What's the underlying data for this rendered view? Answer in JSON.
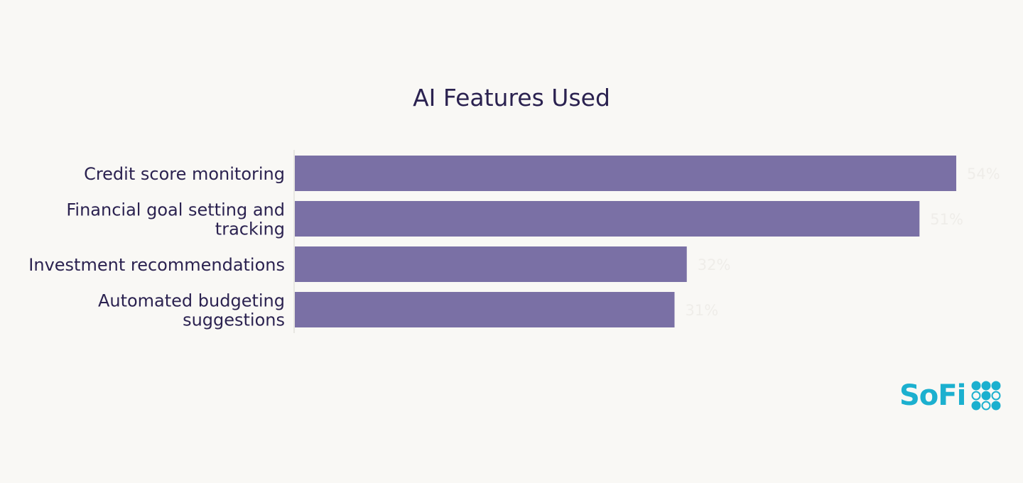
{
  "chart_data": {
    "type": "bar",
    "orientation": "horizontal",
    "title": "AI Features Used",
    "xlabel": "",
    "ylabel": "",
    "categories": [
      [
        "Credit score monitoring"
      ],
      [
        "Financial goal setting and",
        "tracking"
      ],
      [
        "Investment recommendations"
      ],
      [
        "Automated budgeting",
        "suggestions"
      ]
    ],
    "values": [
      54,
      51,
      32,
      31
    ],
    "value_labels": [
      "54%",
      "51%",
      "32%",
      "31%"
    ],
    "xlim": [
      0,
      58
    ],
    "grid": false,
    "bar_color": "#7a70a5",
    "value_label_color": "#efede9",
    "text_color": "#2b2250",
    "axis_color": "#d8d6d0"
  },
  "brand": {
    "name": "SoFi",
    "color": "#1cb0cf",
    "icon": "sofi-dots-logo-icon"
  }
}
